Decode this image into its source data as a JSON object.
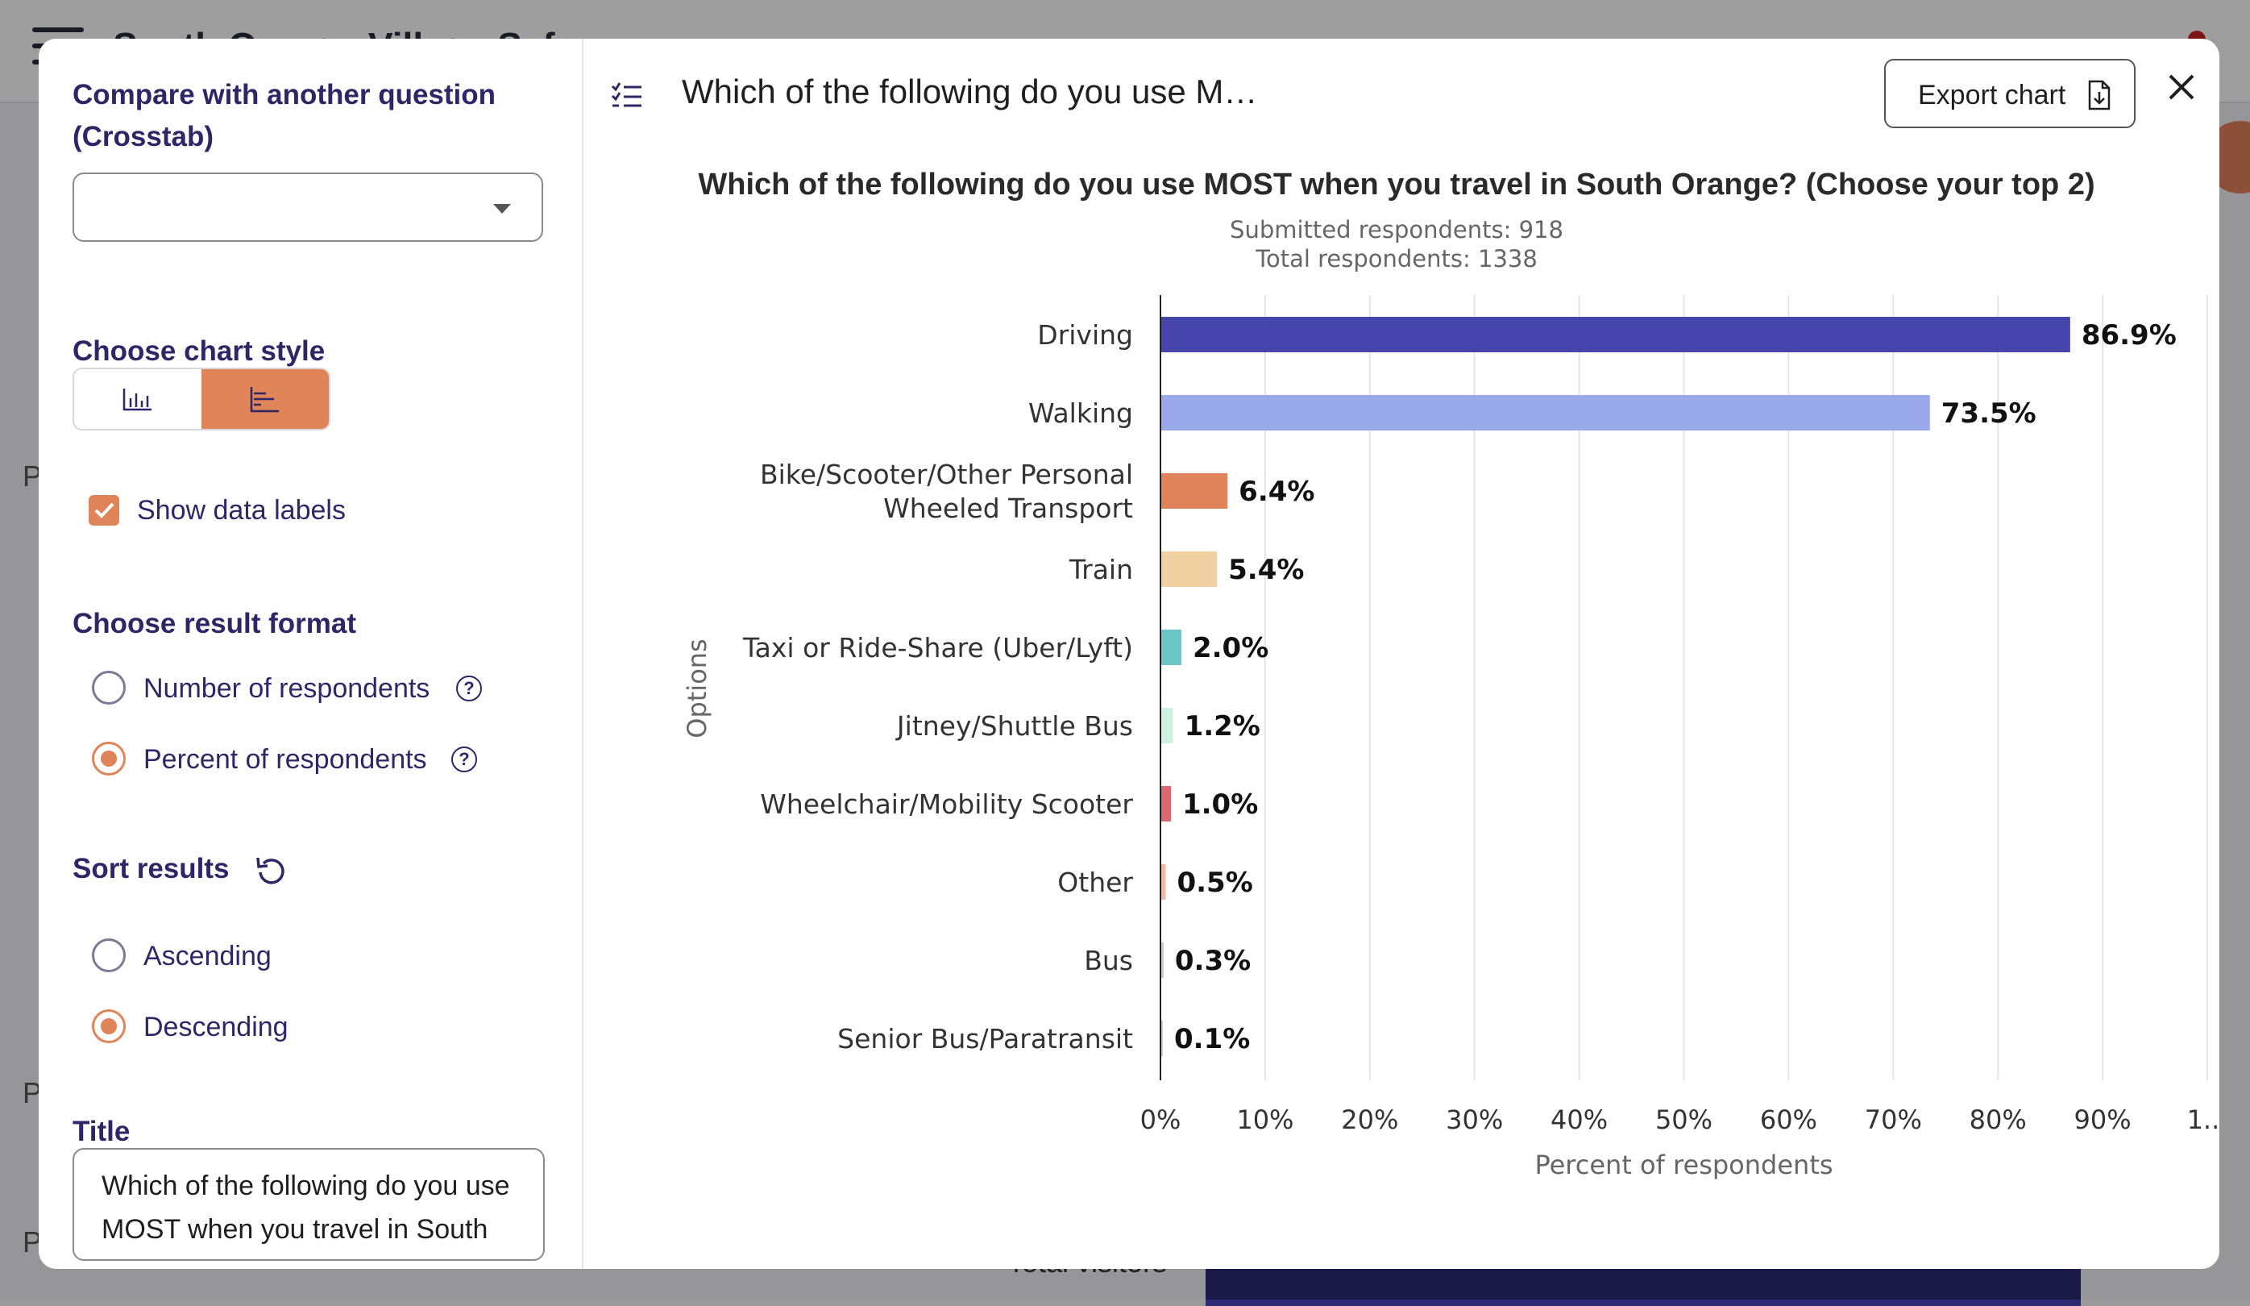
{
  "background": {
    "brand": "South Orange Village Safe",
    "side_letters": [
      "P",
      "P",
      "P"
    ],
    "footer_text": "Total visitors"
  },
  "left_panel": {
    "crosstab_title_line1": "Compare with another question",
    "crosstab_title_line2": "(Crosstab)",
    "crosstab_value": "",
    "chart_style_title": "Choose chart style",
    "chart_style_options": [
      "bar-chart-vertical-icon",
      "bar-chart-horizontal-icon"
    ],
    "chart_style_selected": "bar-chart-horizontal-icon",
    "show_labels_label": "Show data labels",
    "show_labels_checked": true,
    "result_format_title": "Choose result format",
    "result_format_options": [
      "Number of respondents",
      "Percent of respondents"
    ],
    "result_format_selected": "Percent of respondents",
    "sort_title": "Sort results",
    "sort_options": [
      "Ascending",
      "Descending"
    ],
    "sort_selected": "Descending",
    "title_label": "Title",
    "title_value": "Which of the following do you use MOST when you travel in South Orange? (Choose your top 2)"
  },
  "header": {
    "title": "Which of the following do you use M…",
    "export_label": "Export chart"
  },
  "colors": {
    "accent": "#e08459",
    "heading": "#2d2767"
  },
  "chart_data": {
    "type": "bar",
    "orientation": "horizontal",
    "title": "Which of the following do you use MOST when you travel in South Orange? (Choose your top 2)",
    "subtitle_lines": [
      "Submitted respondents: 918",
      "Total respondents: 1338"
    ],
    "ylabel": "Options",
    "xlabel": "Percent of respondents",
    "xlim": [
      0,
      100
    ],
    "x_ticks": [
      "0%",
      "10%",
      "20%",
      "30%",
      "40%",
      "50%",
      "60%",
      "70%",
      "80%",
      "90%",
      "1..."
    ],
    "grid": true,
    "categories": [
      [
        "Driving"
      ],
      [
        "Walking"
      ],
      [
        "Bike/Scooter/Other Personal",
        "Wheeled Transport"
      ],
      [
        "Train"
      ],
      [
        "Taxi or Ride-Share (Uber/Lyft)"
      ],
      [
        "Jitney/Shuttle Bus"
      ],
      [
        "Wheelchair/Mobility Scooter"
      ],
      [
        "Other"
      ],
      [
        "Bus"
      ],
      [
        "Senior Bus/Paratransit"
      ]
    ],
    "values": [
      86.9,
      73.5,
      6.4,
      5.4,
      2.0,
      1.2,
      1.0,
      0.5,
      0.3,
      0.1
    ],
    "value_labels": [
      "86.9%",
      "73.5%",
      "6.4%",
      "5.4%",
      "2.0%",
      "1.2%",
      "1.0%",
      "0.5%",
      "0.3%",
      "0.1%"
    ],
    "bar_colors": [
      "#4645ab",
      "#9aa9ea",
      "#e0825a",
      "#f1d0a2",
      "#6cc6c8",
      "#cdf2e4",
      "#d96670",
      "#f2b7a7",
      "#cccccc",
      "#cccccc"
    ]
  }
}
